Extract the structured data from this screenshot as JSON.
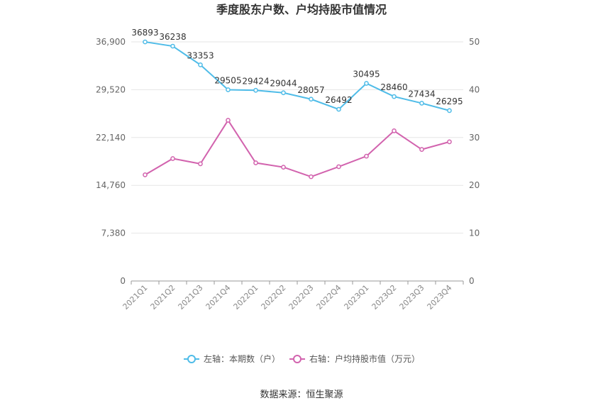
{
  "chart_data": {
    "type": "line",
    "title": "季度股东户数、户均持股市值情况",
    "categories": [
      "2021Q1",
      "2021Q2",
      "2021Q3",
      "2021Q4",
      "2022Q1",
      "2022Q2",
      "2022Q3",
      "2022Q4",
      "2023Q1",
      "2023Q2",
      "2023Q3",
      "2023Q4"
    ],
    "y_left": {
      "ticks": [
        "0",
        "7,380",
        "14,760",
        "22,140",
        "29,520",
        "36,900"
      ],
      "range": [
        0,
        36900
      ]
    },
    "y_right": {
      "ticks": [
        "0",
        "10",
        "20",
        "30",
        "40",
        "50"
      ],
      "range": [
        0,
        50
      ]
    },
    "series": [
      {
        "name": "左轴：本期数（户）",
        "axis": "left",
        "color": "#4fbce8",
        "values": [
          36893,
          36238,
          33353,
          29505,
          29424,
          29044,
          28057,
          26492,
          30495,
          28460,
          27434,
          26295
        ],
        "labels": [
          "36893",
          "36238",
          "33353",
          "29505",
          "29424",
          "29044",
          "28057",
          "26492",
          "30495",
          "28460",
          "27434",
          "26295"
        ]
      },
      {
        "name": "右轴：户均持股市值（万元）",
        "axis": "right",
        "color": "#d263ae",
        "values": [
          22.2,
          25.6,
          24.5,
          33.6,
          24.7,
          23.8,
          21.8,
          23.9,
          26.1,
          31.4,
          27.5,
          29.1
        ]
      }
    ],
    "grid": true,
    "legend_position": "bottom"
  },
  "source": "数据来源：恒生聚源"
}
